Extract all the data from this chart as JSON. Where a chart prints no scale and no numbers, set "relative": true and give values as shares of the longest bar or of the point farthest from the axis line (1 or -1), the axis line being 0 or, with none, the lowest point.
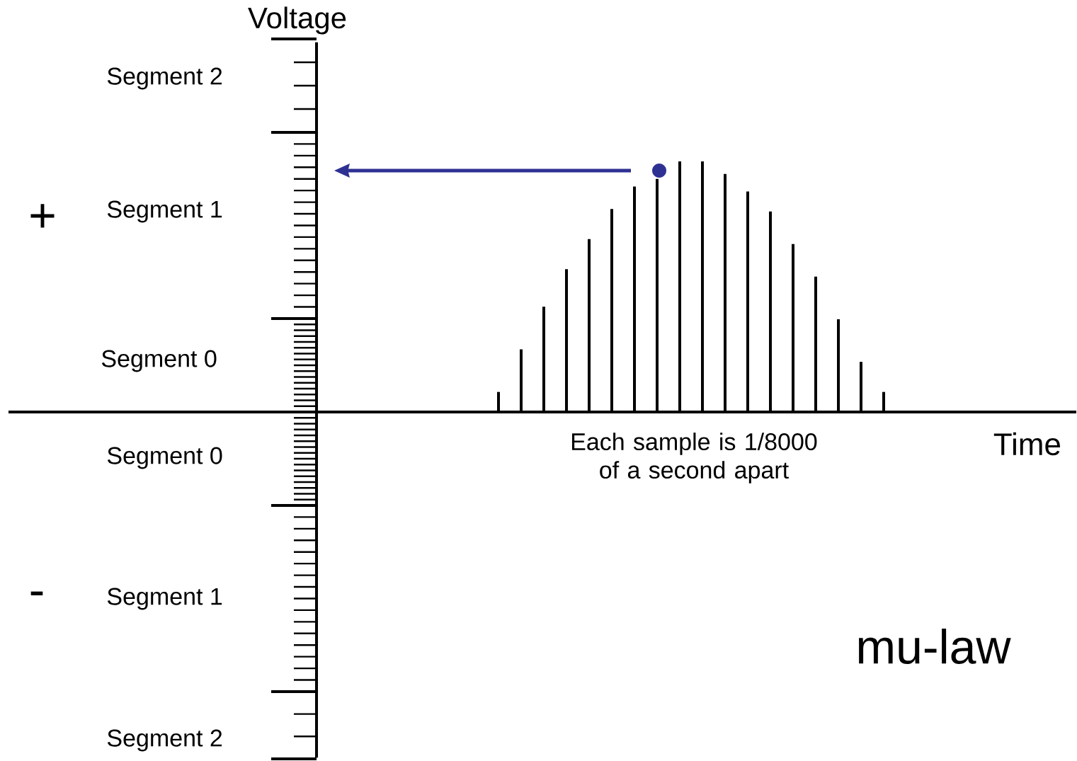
{
  "chart_data": {
    "type": "bar",
    "relative": true,
    "xlabel": "Time",
    "categories": [
      null,
      null,
      null,
      null,
      null,
      null,
      null,
      null,
      null,
      null,
      null,
      null,
      null,
      null,
      null,
      null,
      null,
      null
    ],
    "series": [
      {
        "color": "#000000",
        "values": [
          0.08,
          0.25,
          0.42,
          0.57,
          0.69,
          0.81,
          0.9,
          0.93,
          1,
          1,
          0.95,
          0.88,
          0.8,
          0.67,
          0.54,
          0.37,
          0.2,
          0.08
        ]
      }
    ],
    "annotations": [
      "Segment 2",
      "Segment 1",
      "Segment 0",
      "Segment 0",
      "Segment 1",
      "Segment 2",
      "+",
      "-",
      "Each sample is 1/8000 of a second apart",
      "mu-law",
      "Voltage"
    ]
  }
}
